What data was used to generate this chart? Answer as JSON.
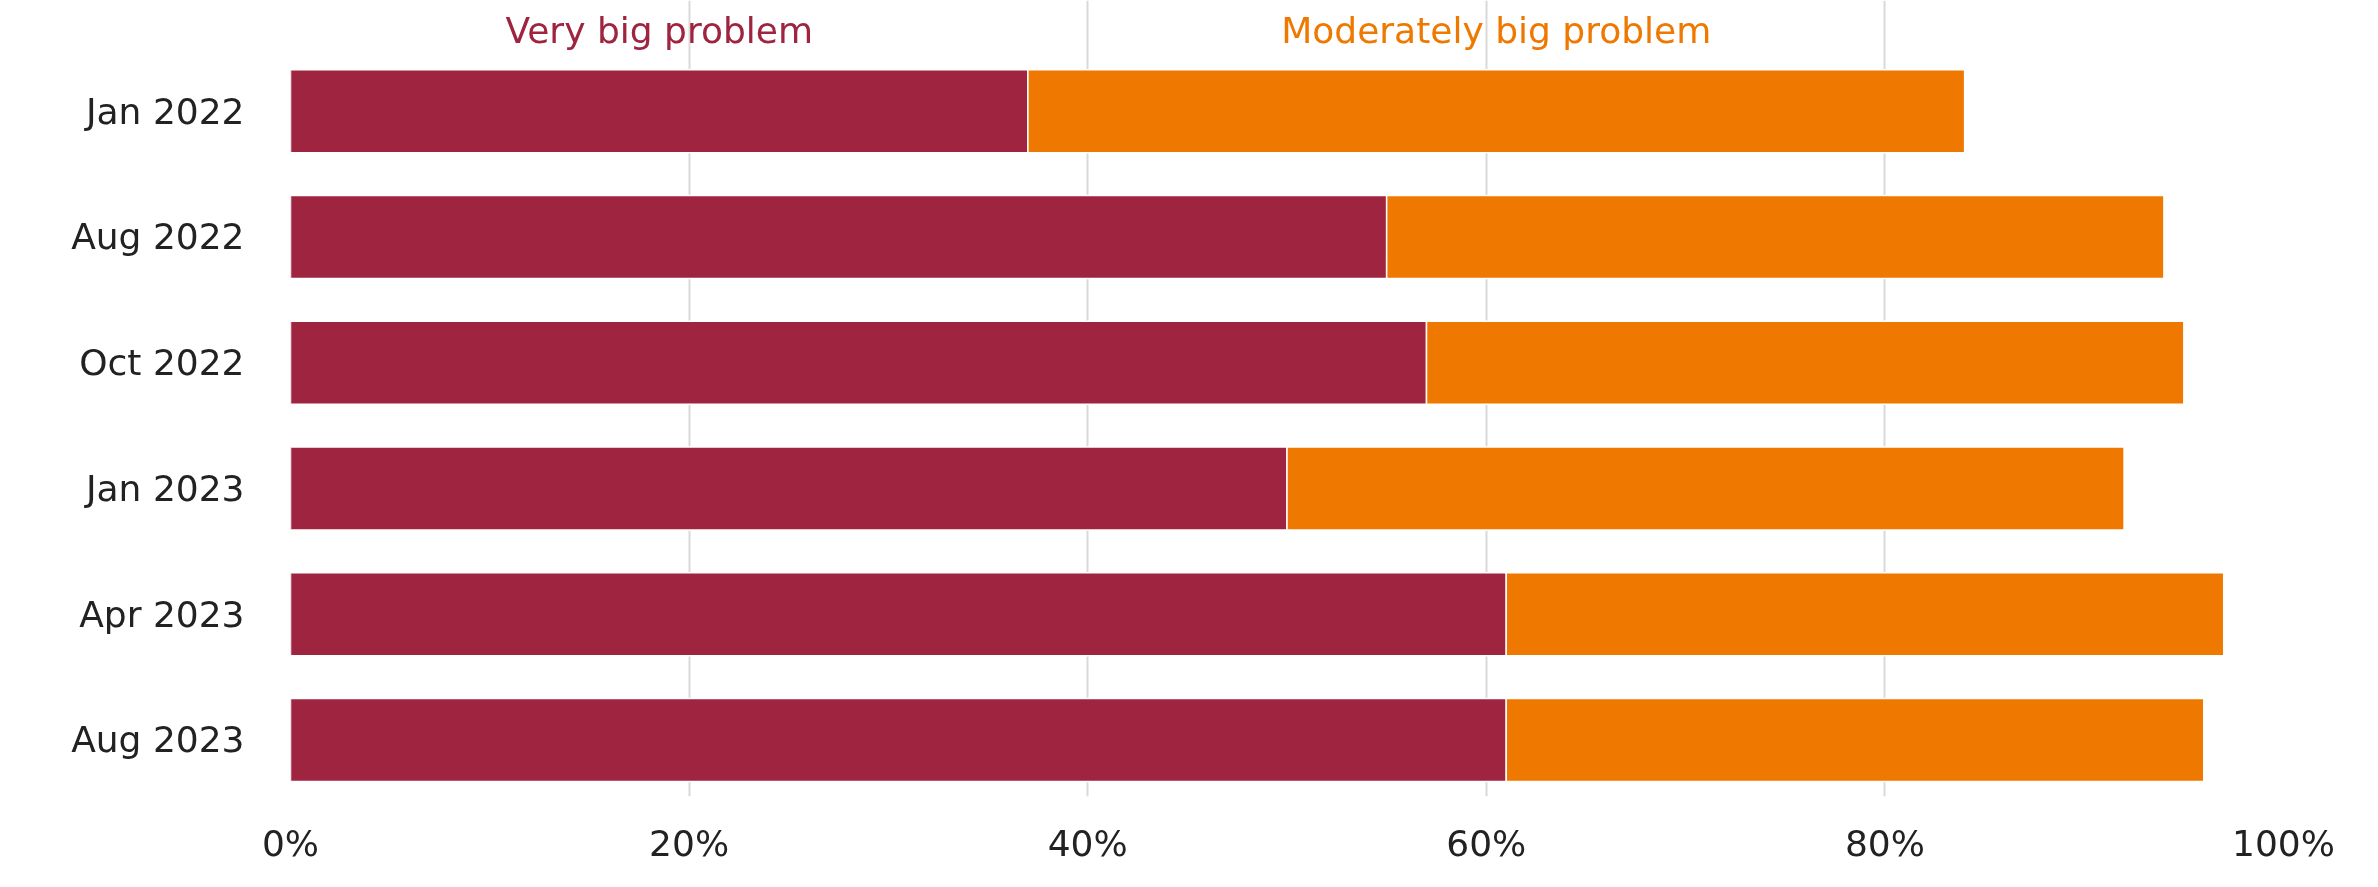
{
  "chart_data": {
    "type": "bar",
    "orientation": "horizontal",
    "stacked": true,
    "categories": [
      "Jan 2022",
      "Aug 2022",
      "Oct 2022",
      "Jan 2023",
      "Apr 2023",
      "Aug 2023"
    ],
    "series": [
      {
        "name": "Very big problem",
        "color": "#9e243f",
        "values": [
          37,
          55,
          57,
          50,
          61,
          61
        ]
      },
      {
        "name": "Moderately big problem",
        "color": "#ef7800",
        "values": [
          47,
          39,
          38,
          42,
          36,
          35
        ]
      }
    ],
    "xlim": [
      0,
      100
    ],
    "xticks": [
      {
        "value": 0,
        "label": "0%"
      },
      {
        "value": 20,
        "label": "20%"
      },
      {
        "value": 40,
        "label": "40%"
      },
      {
        "value": 60,
        "label": "60%"
      },
      {
        "value": 80,
        "label": "80%"
      },
      {
        "value": 100,
        "label": "100%"
      }
    ],
    "grid": "x",
    "legend": "top"
  }
}
